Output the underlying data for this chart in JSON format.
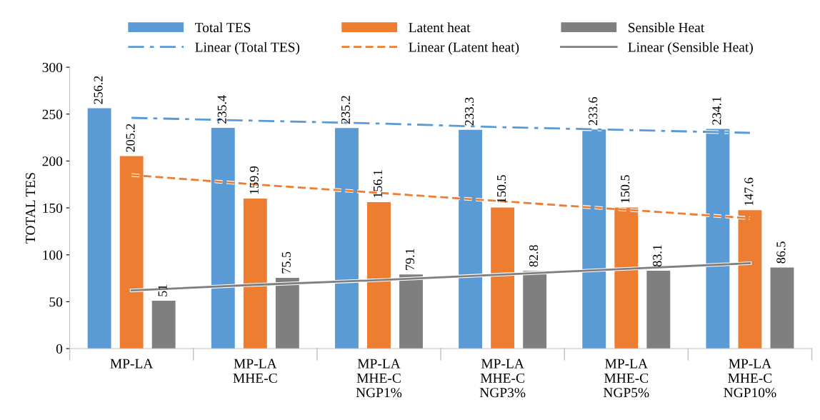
{
  "chart_data": {
    "type": "bar",
    "ylabel": "TOTAL TES",
    "categories": [
      "MP-LA",
      "MP-LA\nMHE-C",
      "MP-LA\nMHE-C\nNGP1%",
      "MP-LA\nMHE-C\nNGP3%",
      "MP-LA\nMHE-C\nNGP5%",
      "MP-LA\nMHE-C\nNGP10%"
    ],
    "series": [
      {
        "name": "Total TES",
        "color": "#5b9bd5",
        "values": [
          256.2,
          235.4,
          235.2,
          233.3,
          233.6,
          234.1
        ],
        "value_labels": [
          "256.2",
          "235.4",
          "235.2",
          "233.3",
          "233.6",
          "234.1"
        ]
      },
      {
        "name": "Latent heat",
        "color": "#ed7d31",
        "values": [
          205.2,
          159.9,
          156.1,
          150.5,
          150.5,
          147.6
        ],
        "value_labels": [
          "205.2",
          "159.9",
          "156.1",
          "150.5",
          "150.5",
          "147.6"
        ]
      },
      {
        "name": "Sensible Heat",
        "color": "#7f7f7f",
        "values": [
          51,
          75.5,
          79.1,
          82.8,
          83.1,
          86.5
        ],
        "value_labels": [
          "51",
          "75.5",
          "79.1",
          "82.8",
          "83.1",
          "86.5"
        ]
      },
      {
        "name": "Linear (Total TES)",
        "type": "line",
        "line_style": "dashdot",
        "color": "#5b9bd5",
        "values": [
          246,
          243,
          240,
          236,
          233,
          230
        ]
      },
      {
        "name": "Linear (Latent heat)",
        "type": "line",
        "line_style": "dashed",
        "color": "#ed7d31",
        "values": [
          185,
          175,
          166,
          157,
          148,
          139
        ]
      },
      {
        "name": "Linear (Sensible Heat)",
        "type": "line",
        "line_style": "solid",
        "color": "#7f7f7f",
        "values": [
          62,
          68,
          73,
          79,
          85,
          91
        ]
      }
    ],
    "ylim": [
      0,
      300
    ],
    "yticks": [
      0,
      50,
      100,
      150,
      200,
      250,
      300
    ],
    "grid": false,
    "legend": "top"
  }
}
